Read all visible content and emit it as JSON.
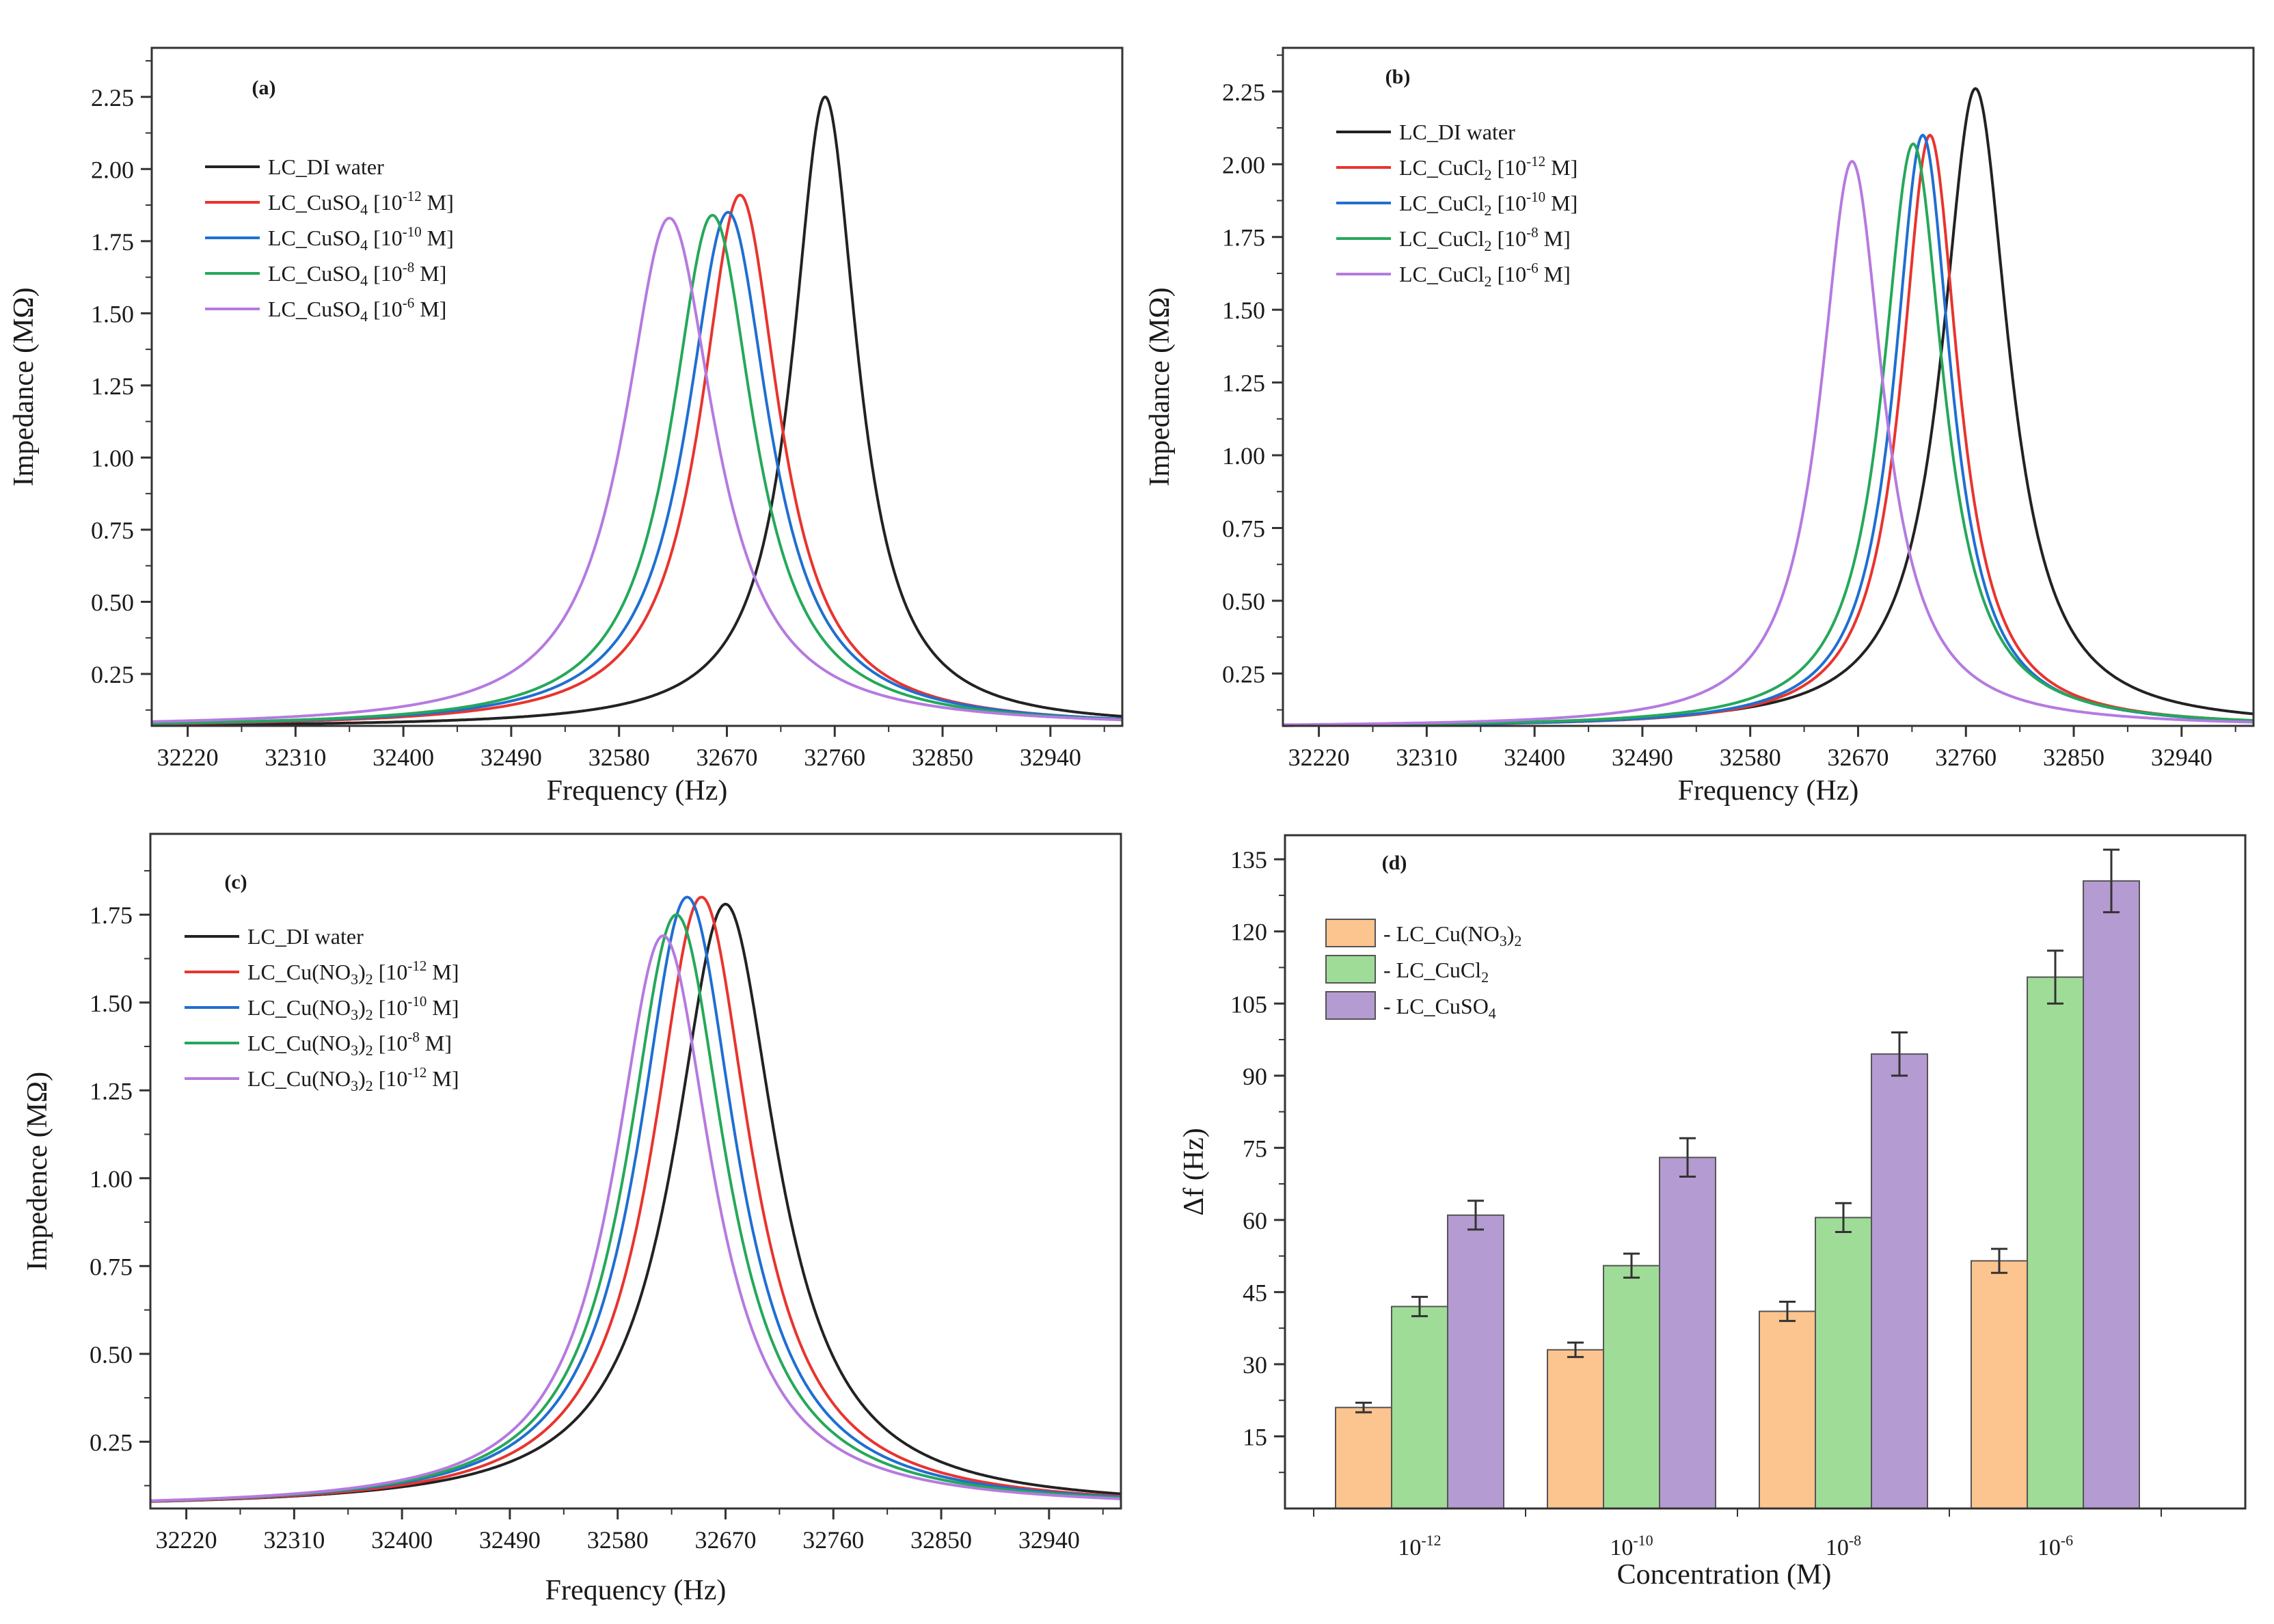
{
  "chart_data": [
    {
      "panel": "(a)",
      "type": "line",
      "xlabel": "Frequency (Hz)",
      "ylabel": "Impedance (MΩ)",
      "xlim": [
        32190,
        33000
      ],
      "ylim": [
        0.07,
        2.42
      ],
      "xticks": [
        32220,
        32310,
        32400,
        32490,
        32580,
        32670,
        32760,
        32850,
        32940
      ],
      "yticks": [
        0.25,
        0.5,
        0.75,
        1.0,
        1.25,
        1.5,
        1.75,
        2.0,
        2.25
      ],
      "ytick_labels": [
        "0.25",
        "0.50",
        "0.75",
        "1.00",
        "1.25",
        "1.50",
        "1.75",
        "2.00",
        "2.25"
      ],
      "baseline": 0.065,
      "series": [
        {
          "name": "LC_DI water",
          "legend_main": "LC_DI water",
          "color": "#222222",
          "peak_x": 32752,
          "peak_y": 2.25,
          "width": 33
        },
        {
          "name": "LC_CuSO4 [10-12 M]",
          "legend_main": "LC_CuSO",
          "legend_sub": "4",
          "legend_conc": "10",
          "legend_exp": "-12",
          "legend_unit": " M]",
          "color": "#e8342e",
          "peak_x": 32681,
          "peak_y": 1.91,
          "width": 40
        },
        {
          "name": "LC_CuSO4 [10-10 M]",
          "legend_main": "LC_CuSO",
          "legend_sub": "4",
          "legend_conc": "10",
          "legend_exp": "-10",
          "legend_unit": " M]",
          "color": "#1f6fd1",
          "peak_x": 32671,
          "peak_y": 1.85,
          "width": 42
        },
        {
          "name": "LC_CuSO4 [10-8 M]",
          "legend_main": "LC_CuSO",
          "legend_sub": "4",
          "legend_conc": "10",
          "legend_exp": "-8",
          "legend_unit": " M]",
          "color": "#25a85a",
          "peak_x": 32658,
          "peak_y": 1.84,
          "width": 42
        },
        {
          "name": "LC_CuSO4 [10-6 M]",
          "legend_main": "LC_CuSO",
          "legend_sub": "4",
          "legend_conc": "10",
          "legend_exp": "-6",
          "legend_unit": " M]",
          "color": "#b57ae0",
          "peak_x": 32622,
          "peak_y": 1.83,
          "width": 46
        }
      ]
    },
    {
      "panel": "(b)",
      "type": "line",
      "xlabel": "Frequency (Hz)",
      "ylabel": "Impedance (MΩ)",
      "xlim": [
        32190,
        33000
      ],
      "ylim": [
        0.07,
        2.4
      ],
      "xticks": [
        32220,
        32310,
        32400,
        32490,
        32580,
        32670,
        32760,
        32850,
        32940
      ],
      "yticks": [
        0.25,
        0.5,
        0.75,
        1.0,
        1.25,
        1.5,
        1.75,
        2.0,
        2.25
      ],
      "ytick_labels": [
        "0.25",
        "0.50",
        "0.75",
        "1.00",
        "1.25",
        "1.50",
        "1.75",
        "2.00",
        "2.25"
      ],
      "baseline": 0.065,
      "series": [
        {
          "name": "LC_DI water",
          "legend_main": "LC_DI water",
          "color": "#222222",
          "peak_x": 32768,
          "peak_y": 2.26,
          "width": 34
        },
        {
          "name": "LC_CuCl2 [10-12 M]",
          "legend_main": "LC_CuCl",
          "legend_sub": "2",
          "legend_conc": "10",
          "legend_exp": "-12",
          "legend_unit": " M]",
          "color": "#e8342e",
          "peak_x": 32730,
          "peak_y": 2.1,
          "width": 29
        },
        {
          "name": "LC_CuCl2 [10-10 M]",
          "legend_main": "LC_CuCl",
          "legend_sub": "2",
          "legend_conc": "10",
          "legend_exp": "-10",
          "legend_unit": " M]",
          "color": "#1f6fd1",
          "peak_x": 32724,
          "peak_y": 2.1,
          "width": 29
        },
        {
          "name": "LC_CuCl2 [10-8 M]",
          "legend_main": "LC_CuCl",
          "legend_sub": "2",
          "legend_conc": "10",
          "legend_exp": "-8",
          "legend_unit": " M]",
          "color": "#25a85a",
          "peak_x": 32716,
          "peak_y": 2.07,
          "width": 31
        },
        {
          "name": "LC_CuCl2 [10-6 M]",
          "legend_main": "LC_CuCl",
          "legend_sub": "2",
          "legend_conc": "10",
          "legend_exp": "-6",
          "legend_unit": " M]",
          "color": "#b57ae0",
          "peak_x": 32665,
          "peak_y": 2.01,
          "width": 32
        }
      ]
    },
    {
      "panel": "(c)",
      "type": "line",
      "xlabel": "Frequency (Hz)",
      "ylabel": "Impedence (MΩ)",
      "xlim": [
        32190,
        33000
      ],
      "ylim": [
        0.06,
        1.98
      ],
      "xticks": [
        32220,
        32310,
        32400,
        32490,
        32580,
        32670,
        32760,
        32850,
        32940
      ],
      "yticks": [
        0.25,
        0.5,
        0.75,
        1.0,
        1.25,
        1.5,
        1.75
      ],
      "ytick_labels": [
        "0.25",
        "0.50",
        "0.75",
        "1.00",
        "1.25",
        "1.50",
        "1.75"
      ],
      "baseline": 0.06,
      "series": [
        {
          "name": "LC_DI water",
          "legend_main": "LC_DI water",
          "color": "#222222",
          "peak_x": 32670,
          "peak_y": 1.78,
          "width": 52
        },
        {
          "name": "LC_Cu(NO3)2 [10-12 M]",
          "legend_main": "LC_Cu(NO",
          "legend_sub": "3",
          "legend_mid": ")",
          "legend_sub2": "2",
          "legend_conc": "10",
          "legend_exp": "-12",
          "legend_unit": " M]",
          "color": "#e8342e",
          "peak_x": 32650,
          "peak_y": 1.8,
          "width": 50
        },
        {
          "name": "LC_Cu(NO3)2 [10-10 M]",
          "legend_main": "LC_Cu(NO",
          "legend_sub": "3",
          "legend_mid": ")",
          "legend_sub2": "2",
          "legend_conc": "10",
          "legend_exp": "-10",
          "legend_unit": " M]",
          "color": "#1f6fd1",
          "peak_x": 32638,
          "peak_y": 1.8,
          "width": 50
        },
        {
          "name": "LC_Cu(NO3)2 [10-8 M]",
          "legend_main": "LC_Cu(NO",
          "legend_sub": "3",
          "legend_mid": ")",
          "legend_sub2": "2",
          "legend_conc": "10",
          "legend_exp": "-8",
          "legend_unit": " M]",
          "color": "#25a85a",
          "peak_x": 32629,
          "peak_y": 1.75,
          "width": 50
        },
        {
          "name": "LC_Cu(NO3)2 [10-12 M] (2)",
          "legend_main": "LC_Cu(NO",
          "legend_sub": "3",
          "legend_mid": ")",
          "legend_sub2": "2",
          "legend_conc": "10",
          "legend_exp": "-12",
          "legend_unit": " M]",
          "color": "#b57ae0",
          "peak_x": 32618,
          "peak_y": 1.69,
          "width": 50
        }
      ]
    },
    {
      "panel": "(d)",
      "type": "bar",
      "xlabel": "Concentration (M)",
      "ylabel": "Δf (Hz)",
      "ylim": [
        0,
        140
      ],
      "yticks": [
        15,
        30,
        45,
        60,
        75,
        90,
        105,
        120,
        135
      ],
      "ytick_labels": [
        "15",
        "30",
        "45",
        "60",
        "75",
        "90",
        "105",
        "120",
        "135"
      ],
      "categories": [
        {
          "base": "10",
          "exp": "-12"
        },
        {
          "base": "10",
          "exp": "-10"
        },
        {
          "base": "10",
          "exp": "-8"
        },
        {
          "base": "10",
          "exp": "-6"
        }
      ],
      "series": [
        {
          "name": "LC_Cu(NO3)2",
          "legend_prefix": "- LC_Cu(NO",
          "legend_sub": "3",
          "legend_mid": ")",
          "legend_sub2": "2",
          "color": "#fcc48f",
          "values": [
            21,
            33,
            41,
            51.5
          ],
          "errors": [
            1,
            1.5,
            2,
            2.5
          ]
        },
        {
          "name": "LC_CuCl2",
          "legend_prefix": "- LC_CuCl",
          "legend_sub": "2",
          "color": "#9fdc98",
          "values": [
            42,
            50.5,
            60.5,
            110.5
          ],
          "errors": [
            2,
            2.5,
            3,
            5.5
          ]
        },
        {
          "name": "LC_CuSO4",
          "legend_prefix": "- LC_CuSO",
          "legend_sub": "4",
          "color": "#b49bd1",
          "values": [
            61,
            73,
            94.5,
            130.5
          ],
          "errors": [
            3,
            4,
            4.5,
            6.5
          ]
        }
      ]
    }
  ]
}
